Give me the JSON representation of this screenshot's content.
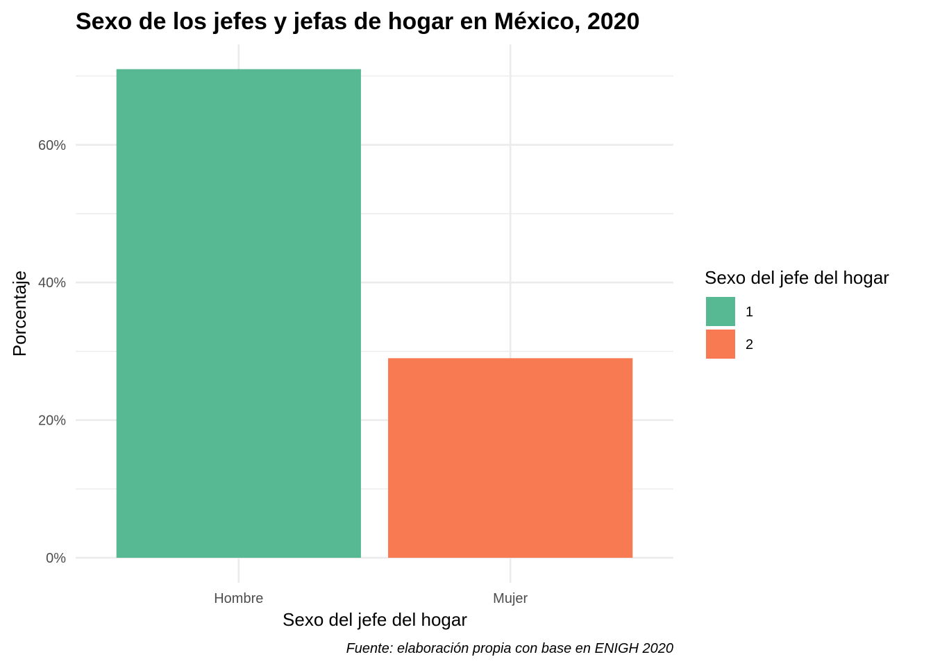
{
  "chart_data": {
    "type": "bar",
    "title": "Sexo de los jefes y jefas de hogar en México, 2020",
    "xlabel": "Sexo del jefe del hogar",
    "ylabel": "Porcentaje",
    "caption": "Fuente: elaboración propia con base en ENIGH 2020",
    "categories": [
      "Hombre",
      "Mujer"
    ],
    "values": [
      71.0,
      29.0
    ],
    "value_unit": "%",
    "ylim": [
      0,
      74.5
    ],
    "y_ticks": [
      0,
      20,
      40,
      60
    ],
    "y_tick_labels": [
      "0%",
      "20%",
      "40%",
      "60%"
    ],
    "y_minor_ticks": [
      10,
      30,
      50,
      70
    ],
    "grid": true,
    "colors": [
      "#57b993",
      "#f77a52"
    ],
    "legend": {
      "title": "Sexo del jefe del hogar",
      "position": "right",
      "entries": [
        {
          "label": "1",
          "color": "#57b993"
        },
        {
          "label": "2",
          "color": "#f77a52"
        }
      ]
    }
  }
}
